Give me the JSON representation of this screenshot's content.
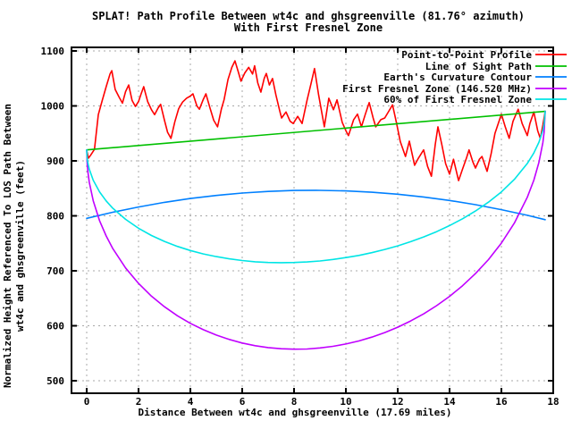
{
  "chart_data": {
    "type": "line",
    "title": "SPLAT! Path Profile Between wt4c and ghsgreenville (81.76° azimuth)",
    "subtitle": "With First Fresnel Zone",
    "xlabel": "Distance Between wt4c and ghsgreenville (17.69 miles)",
    "ylabel_lines": [
      "Normalized Height Referenced To LOS Path Between",
      "wt4c and ghsgreenville (feet)"
    ],
    "x_ticks": [
      0,
      2,
      4,
      6,
      8,
      10,
      12,
      14,
      16,
      18
    ],
    "y_ticks": [
      500,
      600,
      700,
      800,
      900,
      1000,
      1100
    ],
    "xlim": [
      -0.6,
      18
    ],
    "ylim": [
      477,
      1107
    ],
    "x_data_range": [
      0,
      17.69
    ],
    "grid": true,
    "legend_position": "top-right",
    "background": "#ffffff",
    "grid_color": "#a8a8a8",
    "series": [
      {
        "name": "Point-to-Point Profile",
        "color": "#ff0000",
        "points": [
          [
            0,
            919
          ],
          [
            0.07,
            905
          ],
          [
            0.15,
            910
          ],
          [
            0.3,
            921
          ],
          [
            0.45,
            984
          ],
          [
            0.6,
            1010
          ],
          [
            0.75,
            1035
          ],
          [
            0.9,
            1058
          ],
          [
            0.97,
            1064
          ],
          [
            1.1,
            1030
          ],
          [
            1.25,
            1016
          ],
          [
            1.38,
            1005
          ],
          [
            1.5,
            1026
          ],
          [
            1.62,
            1038
          ],
          [
            1.75,
            1010
          ],
          [
            1.88,
            999
          ],
          [
            2.0,
            1008
          ],
          [
            2.1,
            1022
          ],
          [
            2.2,
            1035
          ],
          [
            2.35,
            1008
          ],
          [
            2.5,
            993
          ],
          [
            2.62,
            984
          ],
          [
            2.75,
            996
          ],
          [
            2.85,
            1003
          ],
          [
            3.0,
            974
          ],
          [
            3.12,
            952
          ],
          [
            3.25,
            941
          ],
          [
            3.4,
            971
          ],
          [
            3.55,
            995
          ],
          [
            3.7,
            1007
          ],
          [
            3.85,
            1014
          ],
          [
            4.0,
            1018
          ],
          [
            4.1,
            1022
          ],
          [
            4.25,
            1000
          ],
          [
            4.35,
            994
          ],
          [
            4.5,
            1012
          ],
          [
            4.6,
            1022
          ],
          [
            4.75,
            997
          ],
          [
            4.9,
            974
          ],
          [
            5.05,
            962
          ],
          [
            5.2,
            995
          ],
          [
            5.3,
            1011
          ],
          [
            5.45,
            1048
          ],
          [
            5.6,
            1070
          ],
          [
            5.72,
            1082
          ],
          [
            5.85,
            1062
          ],
          [
            5.95,
            1045
          ],
          [
            6.1,
            1060
          ],
          [
            6.25,
            1070
          ],
          [
            6.4,
            1058
          ],
          [
            6.48,
            1073
          ],
          [
            6.6,
            1042
          ],
          [
            6.72,
            1025
          ],
          [
            6.85,
            1050
          ],
          [
            6.93,
            1059
          ],
          [
            7.05,
            1038
          ],
          [
            7.17,
            1050
          ],
          [
            7.3,
            1020
          ],
          [
            7.45,
            990
          ],
          [
            7.52,
            978
          ],
          [
            7.69,
            989
          ],
          [
            7.85,
            972
          ],
          [
            7.97,
            968
          ],
          [
            8.14,
            981
          ],
          [
            8.31,
            968
          ],
          [
            8.5,
            1010
          ],
          [
            8.65,
            1040
          ],
          [
            8.79,
            1068
          ],
          [
            8.95,
            1020
          ],
          [
            9.17,
            962
          ],
          [
            9.34,
            1014
          ],
          [
            9.52,
            993
          ],
          [
            9.66,
            1011
          ],
          [
            9.86,
            970
          ],
          [
            10.0,
            955
          ],
          [
            10.1,
            946
          ],
          [
            10.3,
            975
          ],
          [
            10.45,
            985
          ],
          [
            10.6,
            962
          ],
          [
            10.75,
            985
          ],
          [
            10.9,
            1006
          ],
          [
            11.05,
            978
          ],
          [
            11.15,
            962
          ],
          [
            11.35,
            975
          ],
          [
            11.5,
            978
          ],
          [
            11.65,
            990
          ],
          [
            11.8,
            1002
          ],
          [
            11.95,
            970
          ],
          [
            12.1,
            935
          ],
          [
            12.3,
            908
          ],
          [
            12.45,
            936
          ],
          [
            12.65,
            892
          ],
          [
            12.8,
            905
          ],
          [
            13.0,
            920
          ],
          [
            13.15,
            890
          ],
          [
            13.3,
            872
          ],
          [
            13.45,
            930
          ],
          [
            13.55,
            962
          ],
          [
            13.7,
            930
          ],
          [
            13.85,
            895
          ],
          [
            14.0,
            876
          ],
          [
            14.15,
            903
          ],
          [
            14.35,
            864
          ],
          [
            14.5,
            885
          ],
          [
            14.65,
            905
          ],
          [
            14.75,
            920
          ],
          [
            14.9,
            898
          ],
          [
            15.0,
            887
          ],
          [
            15.15,
            903
          ],
          [
            15.25,
            908
          ],
          [
            15.45,
            881
          ],
          [
            15.6,
            912
          ],
          [
            15.75,
            950
          ],
          [
            16.0,
            985
          ],
          [
            16.15,
            962
          ],
          [
            16.3,
            941
          ],
          [
            16.45,
            972
          ],
          [
            16.65,
            994
          ],
          [
            16.8,
            968
          ],
          [
            17.0,
            946
          ],
          [
            17.1,
            968
          ],
          [
            17.25,
            989
          ],
          [
            17.4,
            955
          ],
          [
            17.5,
            941
          ],
          [
            17.6,
            965
          ],
          [
            17.69,
            990
          ]
        ]
      },
      {
        "name": "Line of Sight Path",
        "color": "#00c000",
        "points": [
          [
            0,
            920
          ],
          [
            17.69,
            990
          ]
        ]
      },
      {
        "name": "Earth's Curvature Contour",
        "color": "#0080ff",
        "points": [
          [
            0,
            795.5
          ],
          [
            1,
            806.5
          ],
          [
            2,
            816.1
          ],
          [
            3,
            824.5
          ],
          [
            4,
            831.5
          ],
          [
            5,
            837.1
          ],
          [
            6,
            841.4
          ],
          [
            7,
            844.4
          ],
          [
            8,
            846.1
          ],
          [
            8.85,
            846.5
          ],
          [
            9,
            846.4
          ],
          [
            10,
            845.4
          ],
          [
            11,
            843.0
          ],
          [
            12,
            839.3
          ],
          [
            13,
            834.3
          ],
          [
            14,
            828.0
          ],
          [
            15,
            820.3
          ],
          [
            16,
            811.3
          ],
          [
            17,
            800.9
          ],
          [
            17.69,
            793.0
          ]
        ]
      },
      {
        "name": "First Fresnel Zone (146.520 MHz)",
        "color": "#c000ff",
        "points": [
          [
            0,
            920
          ],
          [
            0.02,
            893.5
          ],
          [
            0.05,
            878.1
          ],
          [
            0.1,
            861.0
          ],
          [
            0.25,
            827.5
          ],
          [
            0.5,
            790.7
          ],
          [
            0.75,
            763.4
          ],
          [
            1,
            741.0
          ],
          [
            1.5,
            705.2
          ],
          [
            2,
            677.0
          ],
          [
            2.5,
            653.9
          ],
          [
            3,
            634.6
          ],
          [
            3.5,
            618.2
          ],
          [
            4,
            604.4
          ],
          [
            4.5,
            592.8
          ],
          [
            5,
            583.1
          ],
          [
            5.5,
            575.1
          ],
          [
            6,
            568.6
          ],
          [
            6.5,
            563.8
          ],
          [
            7,
            560.3
          ],
          [
            7.5,
            558.2
          ],
          [
            8,
            557.4
          ],
          [
            8.5,
            557.8
          ],
          [
            9,
            559.6
          ],
          [
            9.5,
            562.6
          ],
          [
            10,
            566.9
          ],
          [
            10.5,
            572.4
          ],
          [
            11,
            579.3
          ],
          [
            11.5,
            587.7
          ],
          [
            12,
            597.4
          ],
          [
            12.5,
            608.7
          ],
          [
            13,
            621.7
          ],
          [
            13.5,
            636.6
          ],
          [
            14,
            653.5
          ],
          [
            14.5,
            672.8
          ],
          [
            15,
            694.9
          ],
          [
            15.5,
            720.4
          ],
          [
            16,
            750.4
          ],
          [
            16.5,
            786.9
          ],
          [
            17,
            833.9
          ],
          [
            17.25,
            864.9
          ],
          [
            17.45,
            897.4
          ],
          [
            17.6,
            933.2
          ],
          [
            17.65,
            952.2
          ],
          [
            17.69,
            990
          ]
        ]
      },
      {
        "name": "60% of First Fresnel Zone",
        "color": "#00e5e5",
        "points": [
          [
            0,
            920
          ],
          [
            0.02,
            904.2
          ],
          [
            0.05,
            895.0
          ],
          [
            0.1,
            884.8
          ],
          [
            0.25,
            864.9
          ],
          [
            0.5,
            843.2
          ],
          [
            0.75,
            827.2
          ],
          [
            1,
            814.2
          ],
          [
            1.5,
            793.6
          ],
          [
            2,
            777.4
          ],
          [
            2.5,
            764.3
          ],
          [
            3,
            753.5
          ],
          [
            3.5,
            744.4
          ],
          [
            4,
            736.9
          ],
          [
            4.5,
            730.8
          ],
          [
            5,
            725.8
          ],
          [
            5.5,
            721.8
          ],
          [
            6,
            718.7
          ],
          [
            6.5,
            716.5
          ],
          [
            7,
            715.2
          ],
          [
            7.5,
            714.8
          ],
          [
            8,
            715.1
          ],
          [
            8.5,
            716.1
          ],
          [
            9,
            717.9
          ],
          [
            9.5,
            720.6
          ],
          [
            10,
            724.0
          ],
          [
            10.5,
            728.0
          ],
          [
            11,
            733.0
          ],
          [
            11.5,
            738.8
          ],
          [
            12,
            745.4
          ],
          [
            12.5,
            753.0
          ],
          [
            13,
            761.6
          ],
          [
            13.5,
            771.3
          ],
          [
            14,
            782.3
          ],
          [
            14.5,
            794.6
          ],
          [
            15,
            808.7
          ],
          [
            15.5,
            824.8
          ],
          [
            16,
            843.6
          ],
          [
            16.5,
            866.3
          ],
          [
            17,
            895.3
          ],
          [
            17.25,
            914.3
          ],
          [
            17.45,
            934.0
          ],
          [
            17.6,
            955.8
          ],
          [
            17.65,
            967.2
          ],
          [
            17.69,
            990
          ]
        ]
      }
    ]
  }
}
